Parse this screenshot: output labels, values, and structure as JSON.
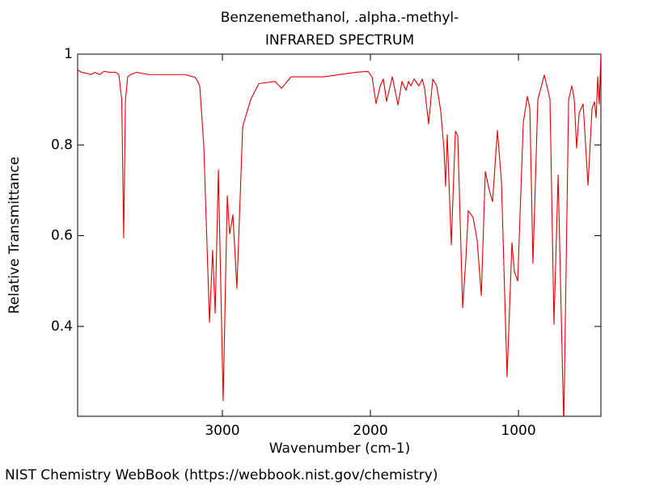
{
  "chart_data": {
    "type": "line",
    "title": "Benzenemethanol, .alpha.-methyl-",
    "subtitle": "INFRARED SPECTRUM",
    "x_label": "Wavenumber (cm-1)",
    "y_label": "Relative Transmittance",
    "source": "NIST Chemistry WebBook (https://webbook.nist.gov/chemistry)",
    "color": "#e00000",
    "xlim": [
      3978,
      443
    ],
    "ylim": [
      0.202,
      1
    ],
    "xticks": [
      3000,
      2000,
      1000
    ],
    "yticks": [
      1,
      0.8,
      0.6,
      0.4
    ],
    "x": [
      3978,
      3950,
      3920,
      3890,
      3860,
      3830,
      3800,
      3760,
      3720,
      3700,
      3680,
      3667,
      3655,
      3640,
      3620,
      3580,
      3500,
      3400,
      3300,
      3250,
      3200,
      3191,
      3175,
      3153,
      3126,
      3087,
      3066,
      3049,
      3027,
      2995,
      2967,
      2951,
      2929,
      2902,
      2863,
      2809,
      2754,
      2645,
      2601,
      2536,
      2317,
      2098,
      2016,
      1989,
      1962,
      1934,
      1913,
      1891,
      1852,
      1814,
      1787,
      1760,
      1743,
      1727,
      1705,
      1672,
      1650,
      1634,
      1607,
      1579,
      1552,
      1525,
      1503,
      1492,
      1481,
      1454,
      1426,
      1410,
      1377,
      1355,
      1339,
      1306,
      1279,
      1251,
      1224,
      1197,
      1175,
      1142,
      1115,
      1077,
      1044,
      1027,
      1005,
      967,
      940,
      923,
      902,
      869,
      825,
      787,
      760,
      732,
      694,
      661,
      639,
      623,
      607,
      590,
      563,
      530,
      503,
      486,
      475,
      464,
      454,
      448,
      443
    ],
    "values": [
      0.965,
      0.96,
      0.958,
      0.955,
      0.96,
      0.955,
      0.962,
      0.96,
      0.96,
      0.955,
      0.9,
      0.595,
      0.9,
      0.95,
      0.955,
      0.96,
      0.955,
      0.955,
      0.955,
      0.955,
      0.95,
      0.95,
      0.945,
      0.93,
      0.8,
      0.409,
      0.568,
      0.429,
      0.745,
      0.236,
      0.688,
      0.604,
      0.646,
      0.484,
      0.84,
      0.9,
      0.935,
      0.94,
      0.925,
      0.95,
      0.95,
      0.96,
      0.962,
      0.95,
      0.891,
      0.93,
      0.945,
      0.896,
      0.95,
      0.888,
      0.94,
      0.92,
      0.94,
      0.93,
      0.945,
      0.93,
      0.945,
      0.925,
      0.846,
      0.945,
      0.93,
      0.875,
      0.79,
      0.709,
      0.823,
      0.58,
      0.83,
      0.82,
      0.441,
      0.55,
      0.655,
      0.64,
      0.59,
      0.468,
      0.741,
      0.7,
      0.675,
      0.832,
      0.72,
      0.289,
      0.584,
      0.52,
      0.5,
      0.85,
      0.907,
      0.88,
      0.539,
      0.9,
      0.954,
      0.9,
      0.405,
      0.734,
      0.18,
      0.9,
      0.93,
      0.9,
      0.793,
      0.87,
      0.89,
      0.711,
      0.88,
      0.895,
      0.86,
      0.95,
      0.89,
      0.95,
      1.0
    ]
  }
}
